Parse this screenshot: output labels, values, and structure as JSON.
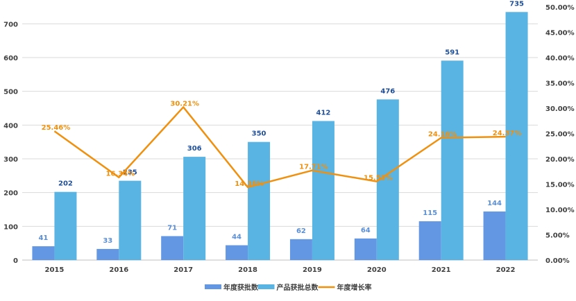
{
  "chart_data": {
    "type": "bar",
    "categories": [
      "2015",
      "2016",
      "2017",
      "2018",
      "2019",
      "2020",
      "2021",
      "2022"
    ],
    "series": [
      {
        "name": "年度获批数",
        "kind": "bar",
        "axis": "left",
        "color": "#6497e3",
        "label_color": "#5b8fd6",
        "values": [
          41,
          33,
          71,
          44,
          62,
          64,
          115,
          144
        ],
        "labels": [
          "41",
          "33",
          "71",
          "44",
          "62",
          "64",
          "115",
          "144"
        ]
      },
      {
        "name": "产品获批总数",
        "kind": "bar",
        "axis": "left",
        "color": "#5ab4e3",
        "label_color": "#1f4f9a",
        "values": [
          202,
          235,
          306,
          350,
          412,
          476,
          591,
          735
        ],
        "labels": [
          "202",
          "235",
          "306",
          "350",
          "412",
          "476",
          "591",
          "735"
        ]
      },
      {
        "name": "年度增长率",
        "kind": "line",
        "axis": "right",
        "color": "#f0900f",
        "label_color": "#f0900f",
        "values": [
          25.46,
          16.34,
          30.21,
          14.38,
          17.71,
          15.53,
          24.16,
          24.37
        ],
        "labels": [
          "25.46%",
          "16.34%",
          "30.21%",
          "14.38%",
          "17.71%",
          "15.53%",
          "24.16%",
          "24.37%"
        ]
      }
    ],
    "y_left": {
      "min": 0,
      "max": 750,
      "ticks": [
        "0",
        "100",
        "200",
        "300",
        "400",
        "500",
        "600",
        "700"
      ],
      "tick_values": [
        0,
        100,
        200,
        300,
        400,
        500,
        600,
        700
      ]
    },
    "y_right": {
      "min": 0,
      "max": 50,
      "ticks": [
        "0.00%",
        "5.00%",
        "10.00%",
        "15.00%",
        "20.00%",
        "25.00%",
        "30.00%",
        "35.00%",
        "40.00%",
        "45.00%",
        "50.00%"
      ],
      "tick_values": [
        0,
        5,
        10,
        15,
        20,
        25,
        30,
        35,
        40,
        45,
        50
      ]
    },
    "grid": true,
    "legend": "bottom-center",
    "title": "",
    "xlabel": "",
    "ylabel": ""
  }
}
